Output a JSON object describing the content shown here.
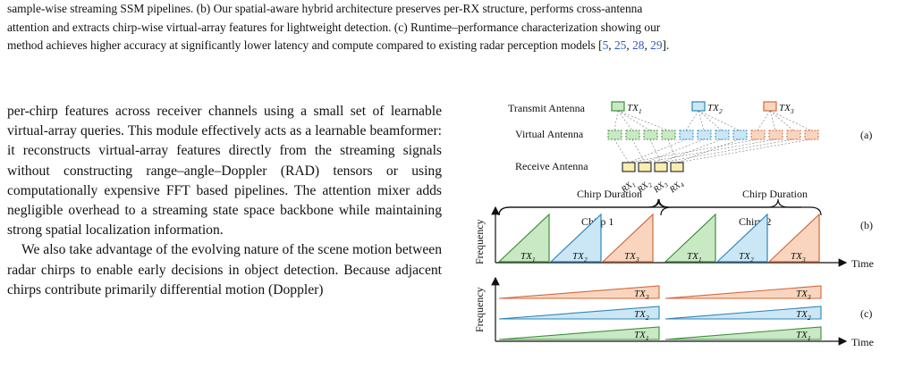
{
  "caption": {
    "line1": "sample-wise streaming SSM pipelines. (b) Our spatial-aware hybrid architecture preserves per-RX structure, performs cross-antenna",
    "line2": "attention and extracts chirp-wise virtual-array features for lightweight detection. (c) Runtime–performance characterization showing our",
    "line3_text": "method achieves higher accuracy at significantly lower latency and compute compared to existing radar perception models [",
    "line3_cites": [
      "5",
      "25",
      "28",
      "29"
    ],
    "line3_end": "]."
  },
  "body": {
    "p1": "per-chirp features across receiver channels using a small set of learnable virtual-array queries. This module effectively acts as a learnable beamformer: it reconstructs virtual-array features directly from the streaming signals without constructing range–angle–Doppler (RAD) tensors or using computationally expensive FFT based pipelines. The attention mixer adds negligible overhead to a streaming state space backbone while maintaining strong spatial localization information.",
    "p2": "We also take advantage of the evolving nature of the scene motion between radar chirps to enable early decisions in object detection. Because adjacent chirps contribute primarily differential motion (Doppler)"
  },
  "figure": {
    "transmit_label": "Transmit Antenna",
    "virtual_label": "Virtual Antenna",
    "receive_label": "Receive Antenna",
    "tx_labels": [
      "TX",
      "TX",
      "TX"
    ],
    "tx_subs": [
      "1",
      "2",
      "3"
    ],
    "rx_labels": [
      "RX",
      "RX",
      "RX",
      "RX"
    ],
    "rx_subs": [
      "1",
      "2",
      "3",
      "4"
    ],
    "panel_a": "(a)",
    "panel_b": "(b)",
    "panel_c": "(c)",
    "chirp_duration": "Chirp Duration",
    "chirp1": "Chirp 1",
    "chirp2": "Chirp 2",
    "frequency": "Frequency",
    "time": "Time",
    "colors": {
      "tx1": "#7dc67a",
      "tx2": "#7fc4e8",
      "tx3": "#f2a277",
      "tx1_fill": "#c9e8c4",
      "tx2_fill": "#cbe7f5",
      "tx3_fill": "#f9d5bf",
      "tx1_line": "#3f8f3c",
      "tx2_line": "#2f86b8",
      "tx3_line": "#d0693b",
      "rx_fill": "#fbecb3",
      "rx_line": "#222222"
    }
  }
}
